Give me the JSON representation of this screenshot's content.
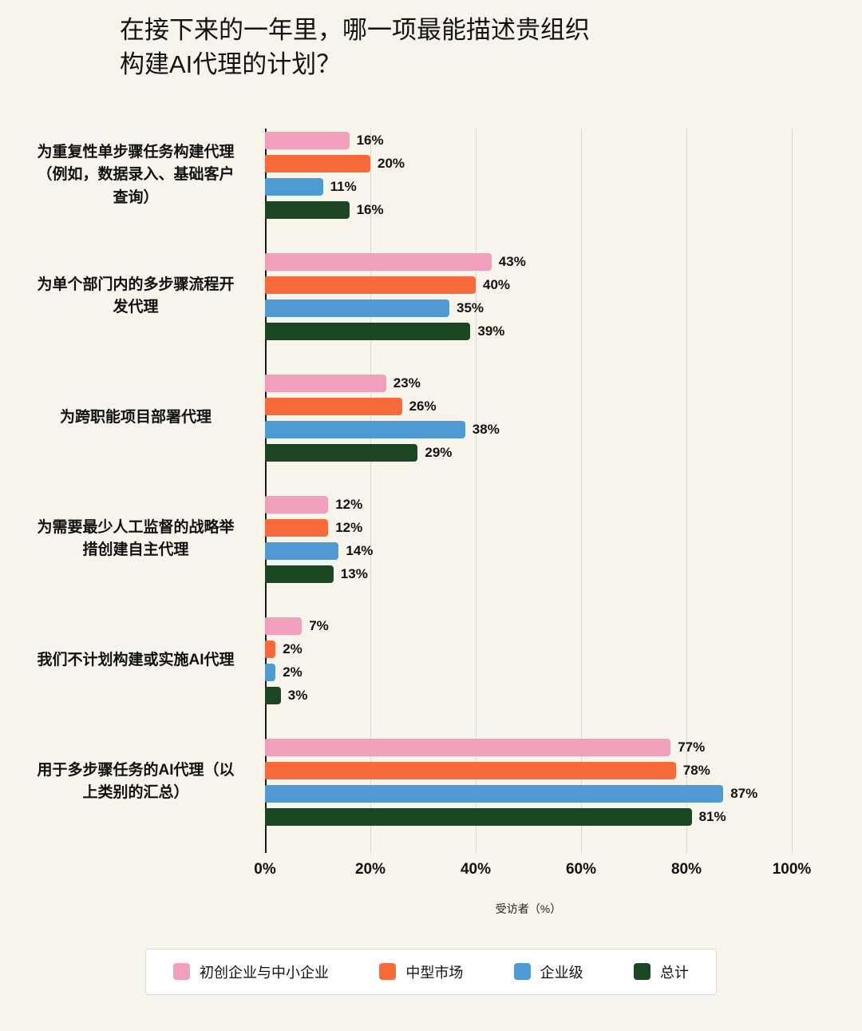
{
  "chart_data": {
    "type": "bar",
    "orientation": "horizontal",
    "title": "在接下来的一年里，哪一项最能描述贵组织\n构建AI代理的计划？",
    "xlabel": "受访者（%）",
    "xlim": [
      0,
      100
    ],
    "x_ticks": [
      0,
      20,
      40,
      60,
      80,
      100
    ],
    "x_tick_suffix": "%",
    "value_suffix": "%",
    "grid": true,
    "legend_position": "bottom",
    "categories": [
      "为重复性单步骤任务构建代理（例如，数据录入、基础客户查询）",
      "为单个部门内的多步骤流程开发代理",
      "为跨职能项目部署代理",
      "为需要最少人工监督的战略举措创建自主代理",
      "我们不计划构建或实施AI代理",
      "用于多步骤任务的AI代理（以上类别的汇总）"
    ],
    "series": [
      {
        "name": "初创企业与中小企业",
        "color": "#F29FBE",
        "values": [
          16,
          43,
          23,
          12,
          7,
          77
        ]
      },
      {
        "name": "中型市场",
        "color": "#F96A3B",
        "values": [
          20,
          40,
          26,
          12,
          2,
          78
        ]
      },
      {
        "name": "企业级",
        "color": "#4F9AD3",
        "values": [
          11,
          35,
          38,
          14,
          2,
          87
        ]
      },
      {
        "name": "总计",
        "color": "#1C4521",
        "values": [
          16,
          39,
          29,
          13,
          3,
          81
        ]
      }
    ],
    "colors": {
      "background": "#f7f4ec",
      "gridline": "#dcd8cb",
      "axis_line": "#1c1c1c",
      "text": "#111111",
      "legend_background": "#ffffff"
    }
  }
}
